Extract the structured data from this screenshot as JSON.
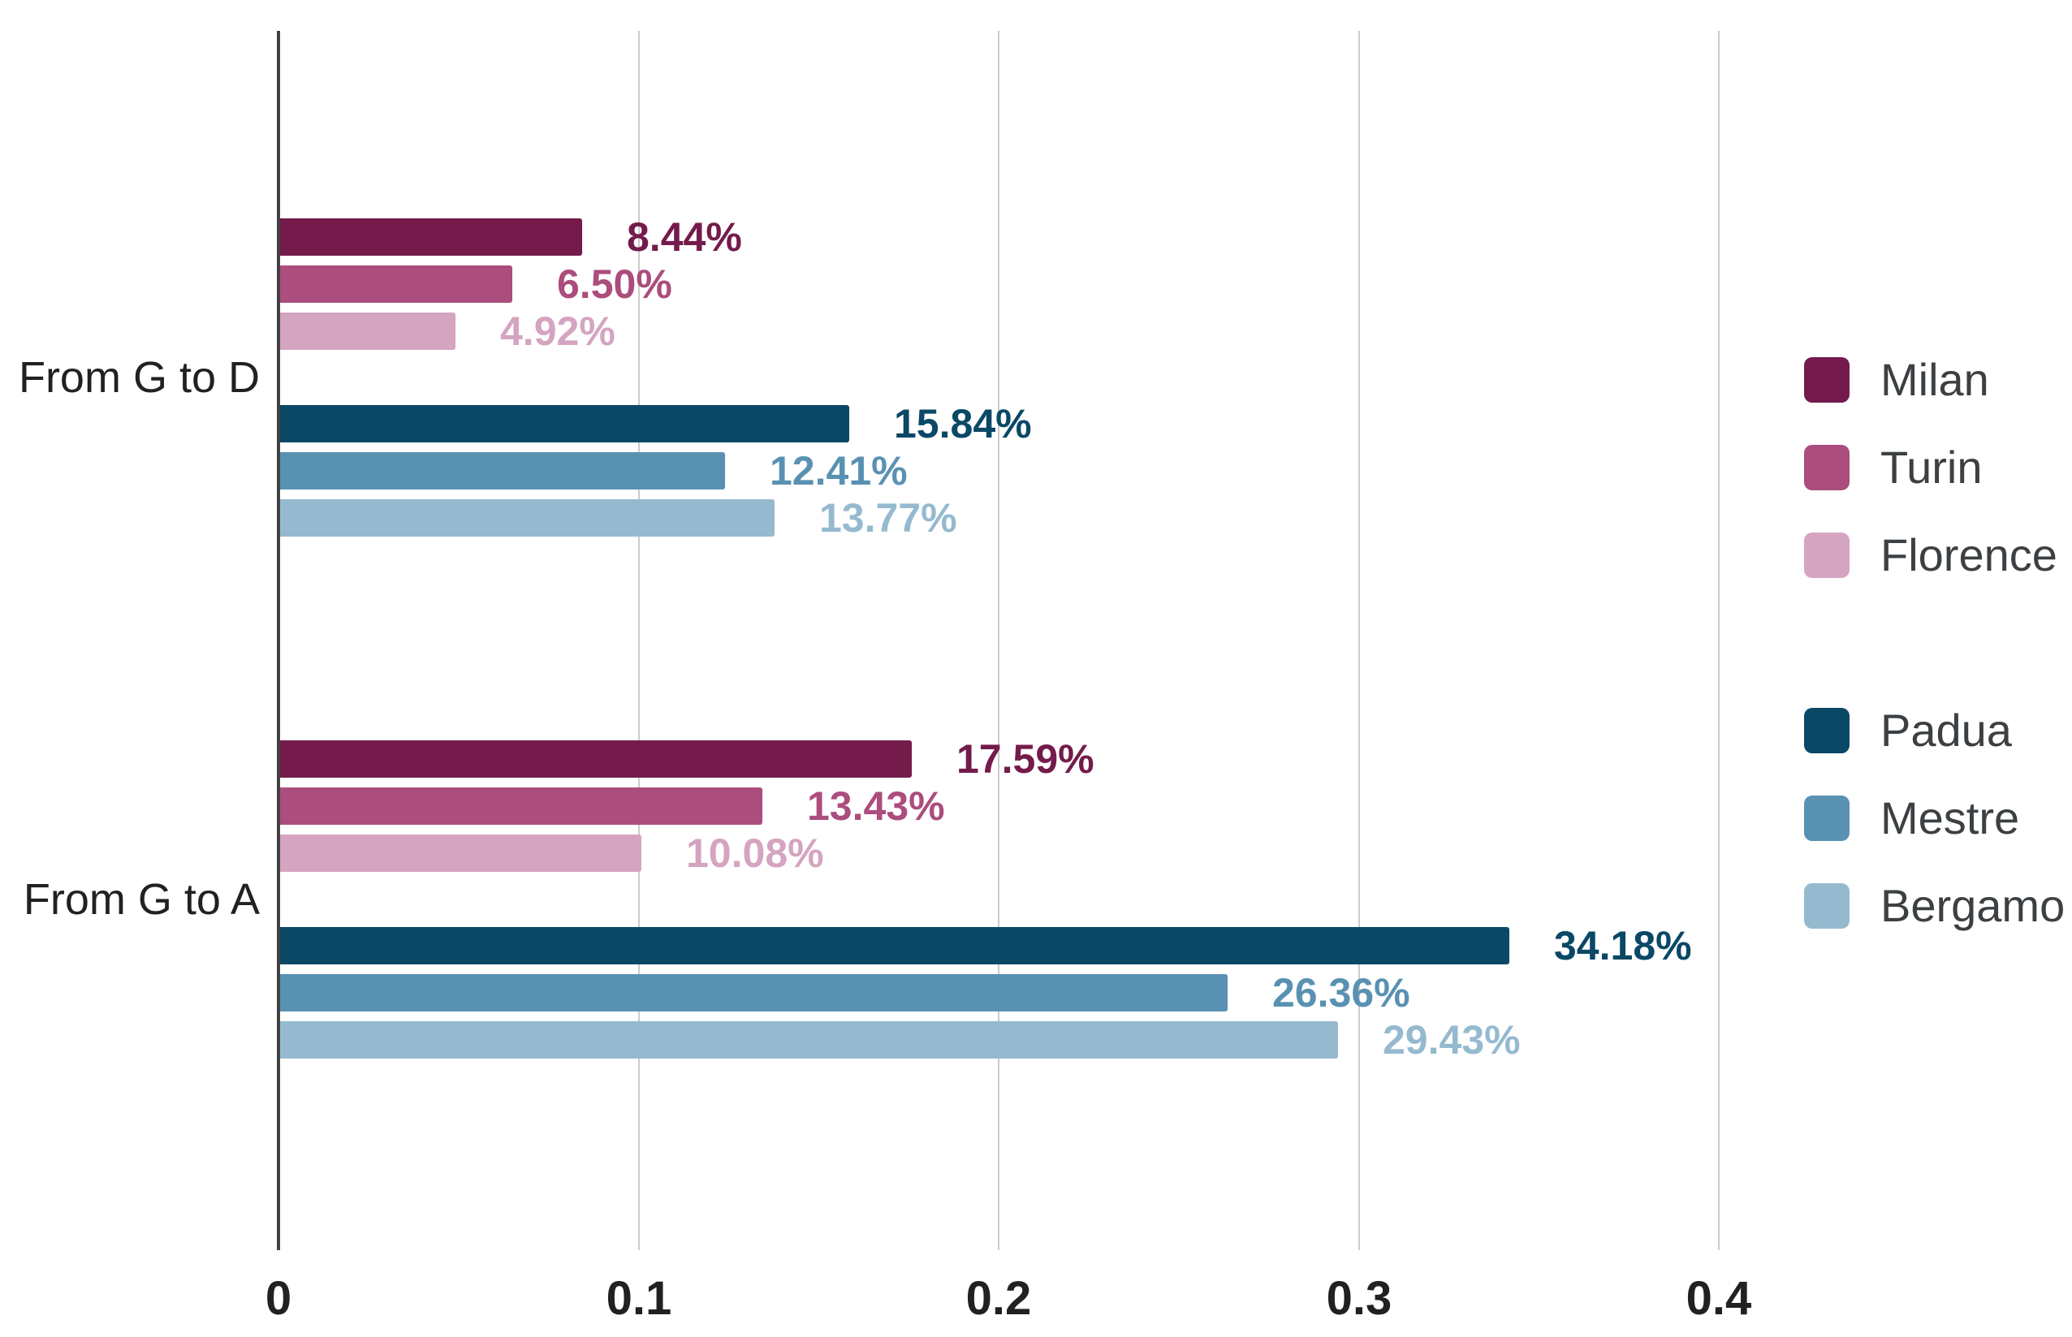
{
  "chart_data": {
    "type": "bar",
    "orientation": "horizontal",
    "categories": [
      "From G to D",
      "From G to A"
    ],
    "series": [
      {
        "name": "Milan",
        "color": "#741B4B",
        "values": [
          0.0844,
          0.1759
        ],
        "data_labels": [
          "8.44%",
          "17.59%"
        ]
      },
      {
        "name": "Turin",
        "color": "#AB4D7D",
        "values": [
          0.065,
          0.1343
        ],
        "data_labels": [
          "6.50%",
          "13.43%"
        ]
      },
      {
        "name": "Florence",
        "color": "#D5A4C1",
        "values": [
          0.0492,
          0.1008
        ],
        "data_labels": [
          "4.92%",
          "10.08%"
        ]
      },
      {
        "name": "Padua",
        "color": "#0A4866",
        "values": [
          0.1584,
          0.3418
        ],
        "data_labels": [
          "15.84%",
          "34.18%"
        ]
      },
      {
        "name": "Mestre",
        "color": "#5991B2",
        "values": [
          0.1241,
          0.2636
        ],
        "data_labels": [
          "12.41%",
          "26.36%"
        ]
      },
      {
        "name": "Bergamo",
        "color": "#95BACF",
        "values": [
          0.1377,
          0.2943
        ],
        "data_labels": [
          "13.77%",
          "29.43%"
        ]
      }
    ],
    "x_axis": {
      "min": 0,
      "max": 0.45,
      "ticks": [
        {
          "value": 0.0,
          "label": "0"
        },
        {
          "value": 0.1,
          "label": "0.1"
        },
        {
          "value": 0.2,
          "label": "0.2"
        },
        {
          "value": 0.3,
          "label": "0.3"
        },
        {
          "value": 0.4,
          "label": "0.4"
        }
      ]
    },
    "legend": {
      "position": "right",
      "groups": [
        [
          "Milan",
          "Turin",
          "Florence"
        ],
        [
          "Padua",
          "Mestre",
          "Bergamo"
        ]
      ]
    },
    "grid": true,
    "styles": {
      "background": "#ffffff",
      "axis_line_color": "#424242",
      "grid_line_color": "#cccccc",
      "tick_label_color": "#212121",
      "category_label_color": "#212121",
      "legend_text_color": "#3c4043"
    }
  }
}
